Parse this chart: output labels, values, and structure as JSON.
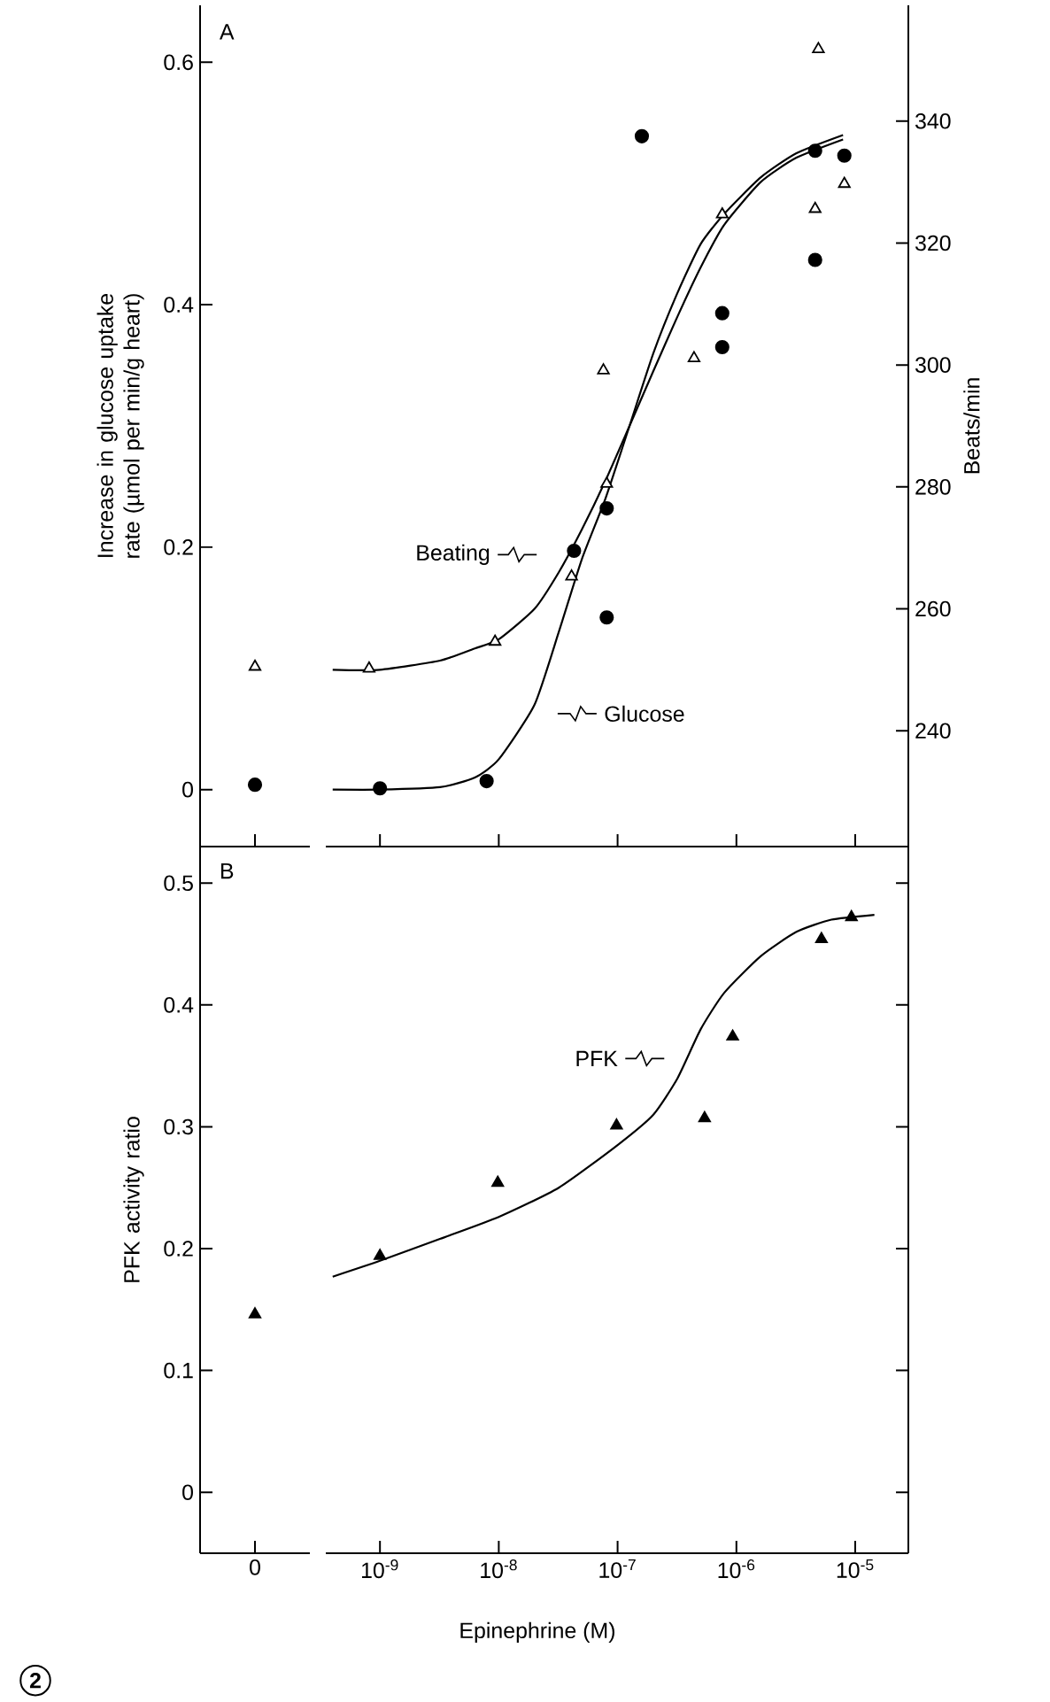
{
  "chart_data": [
    {
      "type": "scatter",
      "ylabel": "Increase in glucose uptake rate (µmol per min/g heart)",
      "categories": [
        "0"
      ],
      "ylim": [
        -0.047,
        0.647
      ],
      "y2lim": [
        221,
        359
      ],
      "yticks": [
        0,
        0.2,
        0.4,
        0.6
      ],
      "tick_labels": "y",
      "series": [
        {
          "type": "scatter",
          "marker": "circle",
          "color": "#000000",
          "values": [
            0.004
          ]
        },
        {
          "type": "scatter",
          "marker": "triangle",
          "axis": "y2",
          "color": "#000000",
          "values": [
            250.5
          ]
        }
      ],
      "annotations": [
        "A"
      ]
    },
    {
      "type": "scatter",
      "y2label": "Beats/min",
      "log": "x",
      "xlim": [
        3.5e-10,
        2.8e-05
      ],
      "ylim": [
        -0.047,
        0.647
      ],
      "y2lim": [
        221,
        359
      ],
      "xticks": [
        {
          "value": 1e-09,
          "label": null
        },
        {
          "value": 1e-08,
          "label": null
        },
        {
          "value": 1e-07,
          "label": null
        },
        {
          "value": 1e-06,
          "label": null
        },
        {
          "value": 1e-05,
          "label": null
        }
      ],
      "y2ticks": [
        240,
        260,
        280,
        300,
        320,
        340
      ],
      "tick_labels": "y",
      "series": [
        {
          "type": "scatter",
          "marker": "circle",
          "color": "#000000",
          "x": [
            1e-09,
            7.9e-09,
            4.3e-08,
            8.1e-08,
            8.1e-08,
            1.6e-07,
            7.6e-07,
            7.6e-07,
            4.6e-06,
            4.6e-06,
            8.1e-06
          ],
          "values": [
            0.001,
            0.007,
            0.197,
            0.232,
            0.142,
            0.539,
            0.393,
            0.365,
            0.437,
            0.527,
            0.523
          ]
        },
        {
          "type": "scatter",
          "marker": "triangle",
          "axis": "y2",
          "color": "#000000",
          "x": [
            8.1e-10,
            9.3e-09,
            4.1e-08,
            8.1e-08,
            7.6e-08,
            4.4e-07,
            7.6e-07,
            4.6e-06,
            4.9e-06,
            8.1e-06
          ],
          "values": [
            250.2,
            254.6,
            265.3,
            280.5,
            299.1,
            301.1,
            324.7,
            325.6,
            351.8,
            329.7
          ]
        },
        {
          "type": "line",
          "marker": "none",
          "line_style": "solid",
          "color": "#000000",
          "x": [
            4e-10,
            1e-09,
            3.2e-09,
            6.3e-09,
            1e-08,
            2e-08,
            3.2e-08,
            5e-08,
            7.9e-08,
            1.26e-07,
            2e-07,
            3.2e-07,
            5e-07,
            7.9e-07,
            1.6e-06,
            3.2e-06,
            7.9e-06
          ],
          "values": [
            0,
            0,
            0.002,
            0.01,
            0.025,
            0.07,
            0.13,
            0.19,
            0.24,
            0.3,
            0.36,
            0.41,
            0.45,
            0.475,
            0.505,
            0.525,
            0.54
          ]
        },
        {
          "type": "line",
          "marker": "none",
          "line_style": "solid",
          "axis": "y2",
          "color": "#000000",
          "x": [
            4e-10,
            1e-09,
            3.2e-09,
            6.3e-09,
            1e-08,
            2e-08,
            3.2e-08,
            5e-08,
            7.9e-08,
            1.26e-07,
            2e-07,
            3.2e-07,
            5e-07,
            7.9e-07,
            1.6e-06,
            3.2e-06,
            7.9e-06
          ],
          "values": [
            250,
            250,
            251.5,
            253.5,
            255,
            260,
            266,
            273,
            281,
            290,
            299,
            308,
            316,
            323,
            330,
            334,
            337
          ]
        }
      ],
      "annotations": [
        "Beating",
        "Glucose"
      ]
    },
    {
      "type": "scatter",
      "ylabel": "PFK activity ratio",
      "categories": [
        "0"
      ],
      "ylim": [
        -0.05,
        0.53
      ],
      "yticks": [
        0,
        0.1,
        0.2,
        0.3,
        0.4,
        0.5
      ],
      "series": [
        {
          "type": "scatter",
          "marker": "triangle",
          "color": "#000000",
          "values": [
            0.146
          ]
        }
      ],
      "annotations": [
        "B",
        "2"
      ]
    },
    {
      "type": "scatter",
      "xlabel": "Epinephrine  (M)",
      "log": "x",
      "xlim": [
        3.5e-10,
        2.8e-05
      ],
      "ylim": [
        -0.05,
        0.53
      ],
      "xticks": [
        {
          "value": 1e-09,
          "label": "10$^{-9}$"
        },
        {
          "value": 1e-08,
          "label": "10$^{-8}$"
        },
        {
          "value": 1e-07,
          "label": "10$^{-7}$"
        },
        {
          "value": 1e-06,
          "label": "10$^{-6}$"
        },
        {
          "value": 1e-05,
          "label": "10$^{-5}$"
        }
      ],
      "yticks": [
        0,
        0.1,
        0.2,
        0.3,
        0.4,
        0.5
      ],
      "tick_labels": "x",
      "series": [
        {
          "type": "scatter",
          "marker": "triangle",
          "color": "#000000",
          "x": [
            1e-09,
            9.8e-09,
            9.8e-08,
            5.4e-07,
            9.3e-07,
            5.2e-06,
            9.3e-06
          ],
          "values": [
            0.194,
            0.254,
            0.301,
            0.307,
            0.374,
            0.454,
            0.472
          ]
        },
        {
          "type": "line",
          "marker": "none",
          "line_style": "solid",
          "color": "#000000",
          "x": [
            4e-10,
            1e-09,
            3.2e-09,
            1e-08,
            3.2e-08,
            1e-07,
            2e-07,
            3.2e-07,
            5e-07,
            7.9e-07,
            1.6e-06,
            3.2e-06,
            6.3e-06,
            1.45e-05
          ],
          "values": [
            0.177,
            0.19,
            0.208,
            0.226,
            0.25,
            0.285,
            0.31,
            0.34,
            0.38,
            0.41,
            0.44,
            0.46,
            0.47,
            0.474
          ]
        }
      ],
      "annotations": [
        "PFK"
      ]
    }
  ]
}
